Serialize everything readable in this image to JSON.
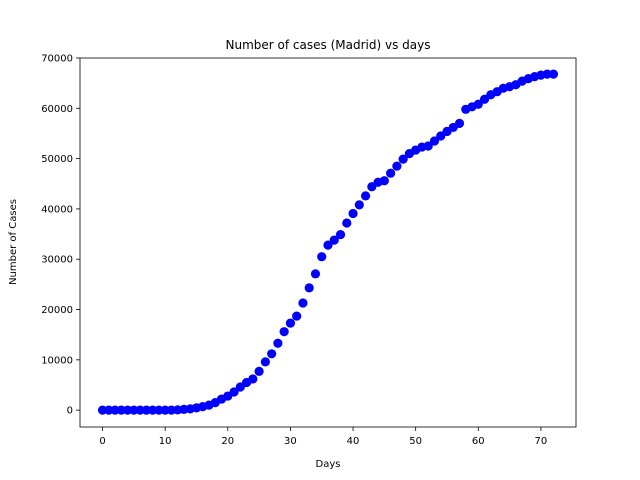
{
  "chart_data": {
    "type": "scatter",
    "title": "Number of cases (Madrid) vs days",
    "xlabel": "Days",
    "ylabel": "Number of Cases",
    "xlim": [
      -3.6,
      75.6
    ],
    "ylim": [
      -3350,
      70000
    ],
    "xticks": [
      0,
      10,
      20,
      30,
      40,
      50,
      60,
      70
    ],
    "yticks": [
      0,
      10000,
      20000,
      30000,
      40000,
      50000,
      60000,
      70000
    ],
    "grid": false,
    "marker_color": "#0000ff",
    "series": [
      {
        "x": [
          0,
          1,
          2,
          3,
          4,
          5,
          6,
          7,
          8,
          9,
          10,
          11,
          12,
          13,
          14,
          15,
          16,
          17,
          18,
          19,
          20,
          21,
          22,
          23,
          24,
          25,
          26,
          27,
          28,
          29,
          30,
          31,
          32,
          33,
          34,
          35,
          36,
          37,
          38,
          39,
          40,
          41,
          42,
          43,
          44,
          45,
          46,
          47,
          48,
          49,
          50,
          51,
          52,
          53,
          54,
          55,
          56,
          57,
          58,
          59,
          60,
          61,
          62,
          63,
          64,
          65,
          66,
          67,
          68,
          69,
          70,
          71,
          72
        ],
        "y": [
          0,
          0,
          0,
          0,
          0,
          0,
          0,
          0,
          0,
          0,
          0,
          0,
          50,
          150,
          250,
          450,
          700,
          1000,
          1500,
          2200,
          2800,
          3600,
          4600,
          5500,
          6200,
          7700,
          9600,
          11200,
          13300,
          15600,
          17300,
          18700,
          21300,
          24300,
          27100,
          30500,
          32800,
          33800,
          34900,
          37200,
          39100,
          40800,
          42600,
          44400,
          45300,
          45600,
          47100,
          48500,
          49900,
          51000,
          51700,
          52300,
          52500,
          53500,
          54500,
          55400,
          56200,
          57000,
          59800,
          60300,
          60800,
          61800,
          62700,
          63300,
          64000,
          64300,
          64700,
          65400,
          65900,
          66300,
          66600,
          66800,
          66800
        ]
      }
    ]
  }
}
